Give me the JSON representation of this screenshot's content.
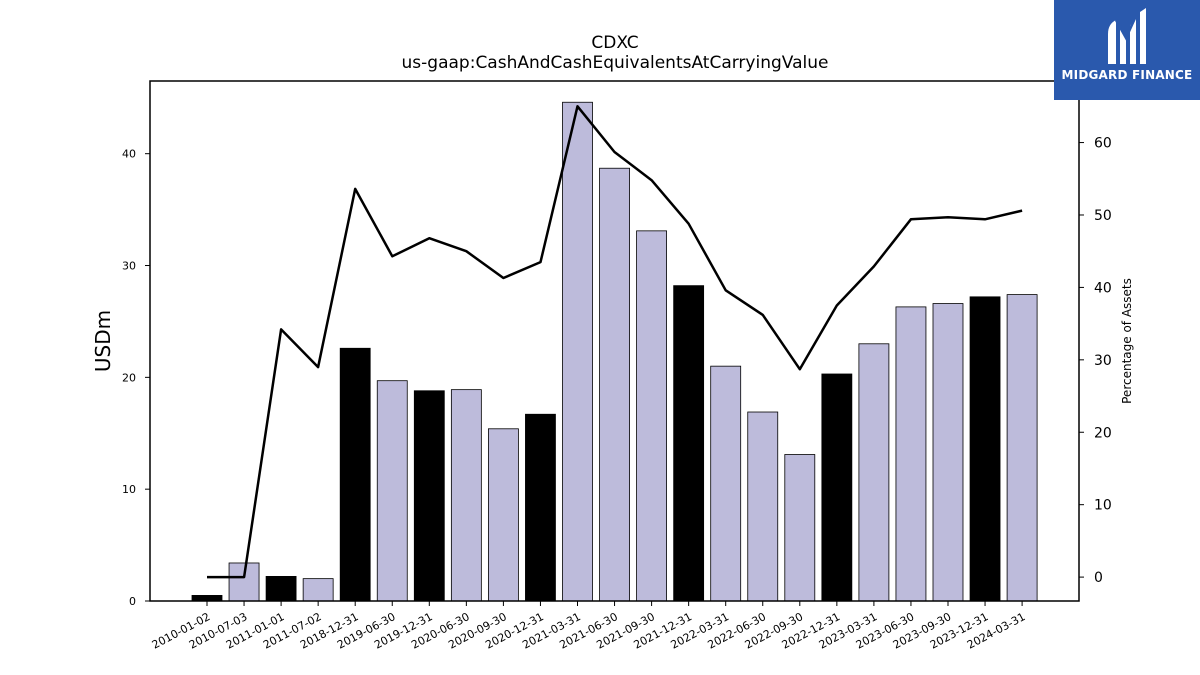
{
  "logo": {
    "text": "MIDGARD FINANCE",
    "icon": "midgard-m-logo-icon",
    "background": "#2a59ad"
  },
  "chart_data": {
    "type": "bar",
    "title": "CDXC",
    "subtitle": "us-gaap:CashAndCashEquivalentsAtCarryingValue",
    "ylabel": "USDm",
    "y2label": "Percentage of Assets",
    "ylim": [
      0,
      46.5
    ],
    "y2lim": [
      -3.3,
      68.5
    ],
    "yticks": [
      0,
      10,
      20,
      30,
      40
    ],
    "y2ticks": [
      0,
      10,
      20,
      30,
      40,
      50,
      60
    ],
    "categories": [
      "2010-01-02",
      "2010-07-03",
      "2011-01-01",
      "2011-07-02",
      "2018-12-31",
      "2019-06-30",
      "2019-12-31",
      "2020-06-30",
      "2020-09-30",
      "2020-12-31",
      "2021-03-31",
      "2021-06-30",
      "2021-09-30",
      "2021-12-31",
      "2022-03-31",
      "2022-06-30",
      "2022-09-30",
      "2022-12-31",
      "2023-03-31",
      "2023-06-30",
      "2023-09-30",
      "2023-12-31",
      "2024-03-31"
    ],
    "series": [
      {
        "type": "bar",
        "values": [
          0.5,
          3.4,
          2.2,
          2.0,
          22.6,
          19.7,
          18.8,
          18.9,
          15.4,
          16.7,
          44.6,
          38.7,
          33.1,
          28.2,
          21.0,
          16.9,
          13.1,
          20.3,
          23.0,
          26.3,
          26.6,
          27.2,
          27.4
        ],
        "colors": [
          "#000000",
          "#bdbbdb",
          "#000000",
          "#bdbbdb",
          "#000000",
          "#bdbbdb",
          "#000000",
          "#bdbbdb",
          "#bdbbdb",
          "#000000",
          "#bdbbdb",
          "#bdbbdb",
          "#bdbbdb",
          "#000000",
          "#bdbbdb",
          "#bdbbdb",
          "#bdbbdb",
          "#000000",
          "#bdbbdb",
          "#bdbbdb",
          "#bdbbdb",
          "#000000",
          "#bdbbdb"
        ]
      },
      {
        "type": "line",
        "axis": "right",
        "values": [
          0.0,
          0.0,
          34.2,
          29.0,
          53.6,
          44.3,
          46.8,
          45.0,
          41.3,
          43.5,
          65.0,
          58.7,
          54.8,
          48.8,
          39.6,
          36.2,
          28.7,
          37.5,
          42.9,
          49.4,
          49.7,
          49.4,
          50.6
        ],
        "color": "#000000"
      }
    ],
    "grid": false,
    "legend": "none"
  }
}
